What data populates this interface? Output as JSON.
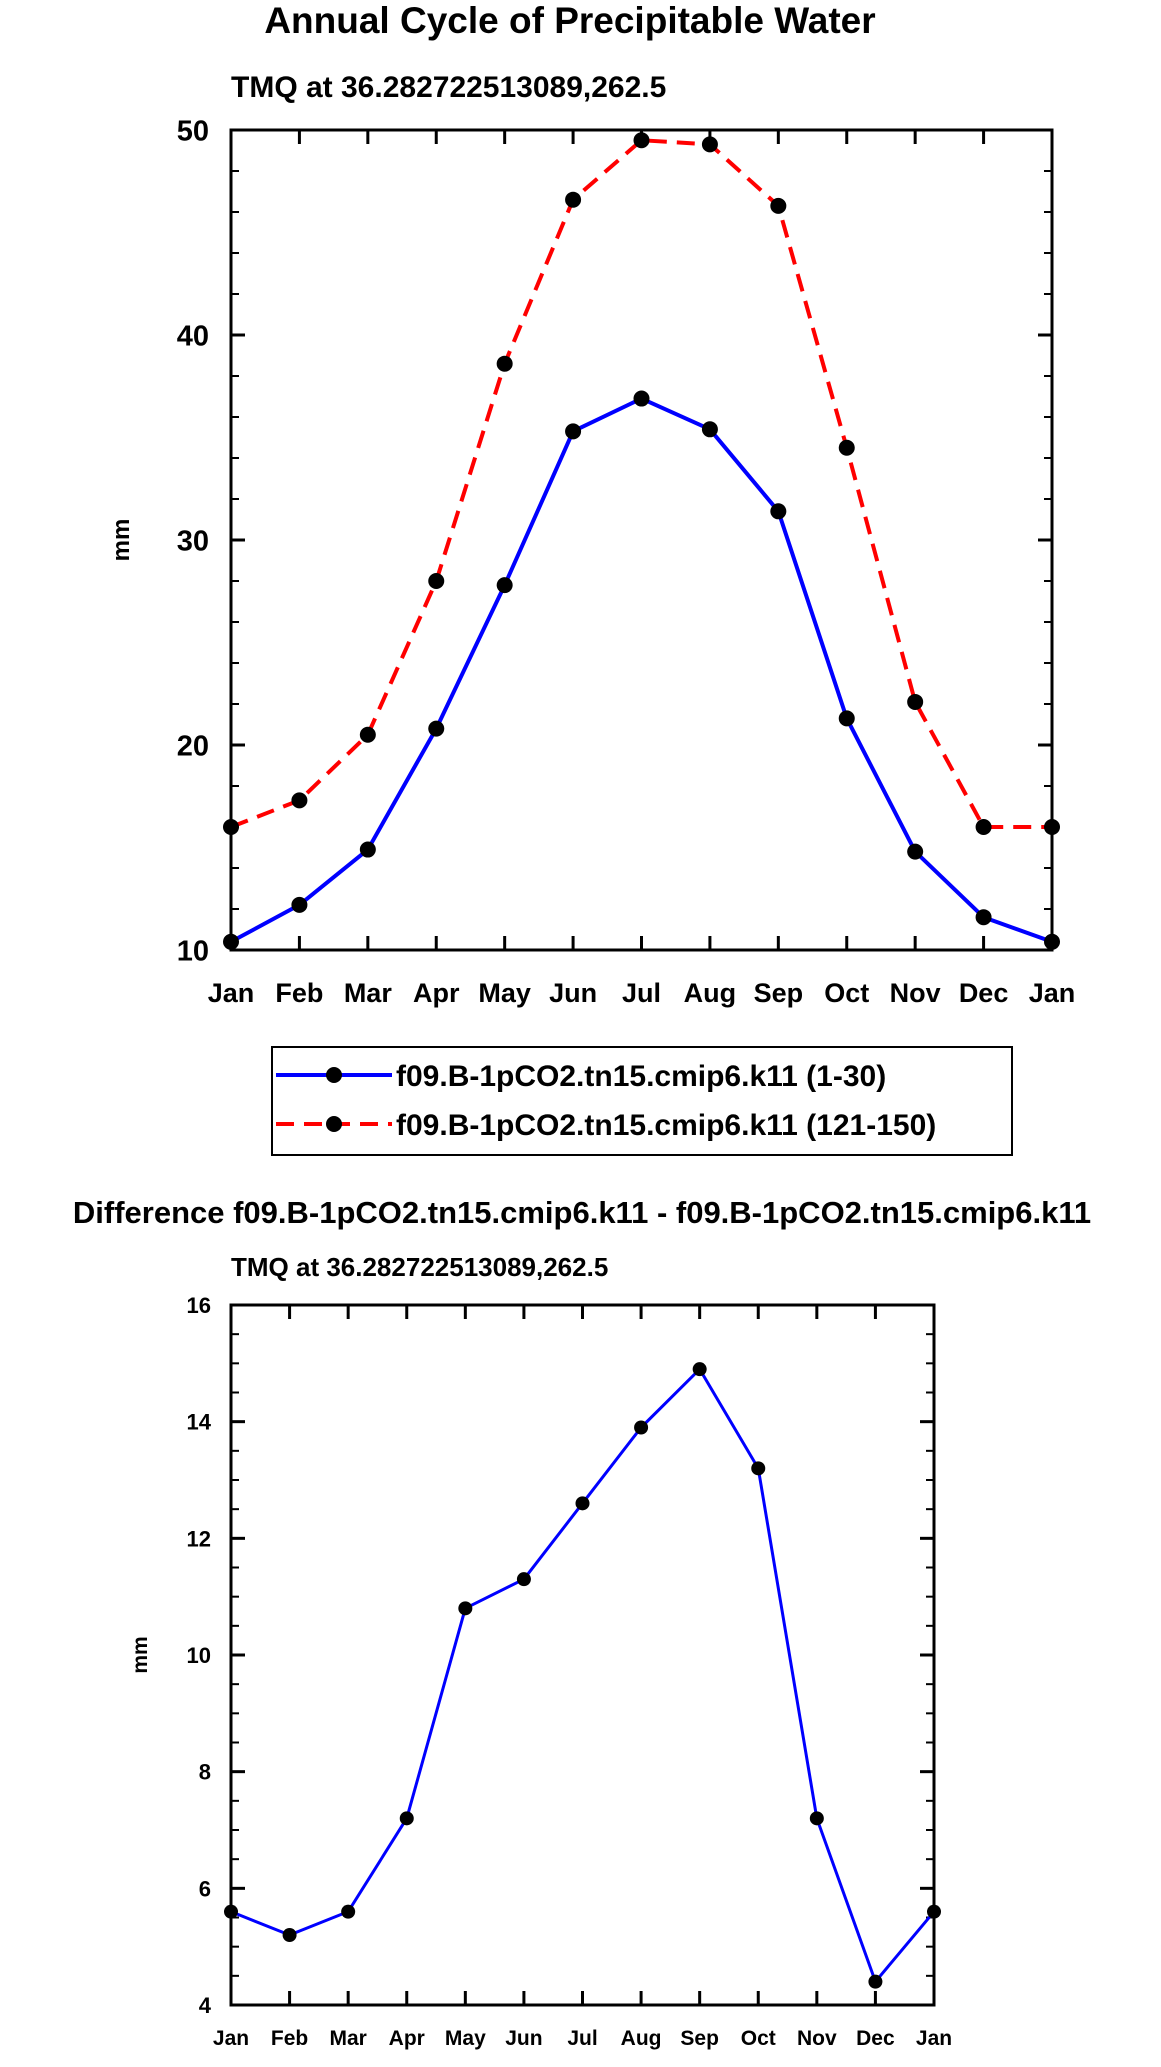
{
  "chart_data": [
    {
      "type": "line",
      "title": "Annual Cycle of Precipitable Water",
      "subtitle": "TMQ at 36.282722513089,262.5",
      "xlabel": "",
      "ylabel": "mm",
      "categories": [
        "Jan",
        "Feb",
        "Mar",
        "Apr",
        "May",
        "Jun",
        "Jul",
        "Aug",
        "Sep",
        "Oct",
        "Nov",
        "Dec",
        "Jan"
      ],
      "ylim": [
        10,
        50
      ],
      "yticks": [
        10,
        20,
        30,
        40,
        50
      ],
      "series": [
        {
          "name": "f09.B-1pCO2.tn15.cmip6.k11 (1-30)",
          "color": "#0000ff",
          "dash": "solid",
          "values": [
            10.4,
            12.2,
            14.9,
            20.8,
            27.8,
            35.3,
            36.9,
            35.4,
            31.4,
            21.3,
            14.8,
            11.6,
            10.4
          ]
        },
        {
          "name": "f09.B-1pCO2.tn15.cmip6.k11 (121-150)",
          "color": "#ff0000",
          "dash": "dashed",
          "values": [
            16.0,
            17.3,
            20.5,
            28.0,
            38.6,
            46.6,
            49.5,
            49.3,
            46.3,
            34.5,
            22.1,
            16.0,
            16.0
          ]
        }
      ],
      "legend": "bottom-center",
      "grid": false
    },
    {
      "type": "line",
      "title": "Difference f09.B-1pCO2.tn15.cmip6.k11 - f09.B-1pCO2.tn15.cmip6.k11",
      "subtitle": "TMQ at 36.282722513089,262.5",
      "xlabel": "",
      "ylabel": "mm",
      "categories": [
        "Jan",
        "Feb",
        "Mar",
        "Apr",
        "May",
        "Jun",
        "Jul",
        "Aug",
        "Sep",
        "Oct",
        "Nov",
        "Dec",
        "Jan"
      ],
      "ylim": [
        4,
        16
      ],
      "yticks": [
        4,
        6,
        8,
        10,
        12,
        14,
        16
      ],
      "series": [
        {
          "name": "Difference",
          "color": "#0000ff",
          "dash": "solid",
          "values": [
            5.6,
            5.2,
            5.6,
            7.2,
            10.8,
            11.3,
            12.6,
            13.9,
            14.9,
            13.2,
            7.2,
            4.4,
            5.6
          ]
        }
      ],
      "grid": false
    }
  ]
}
